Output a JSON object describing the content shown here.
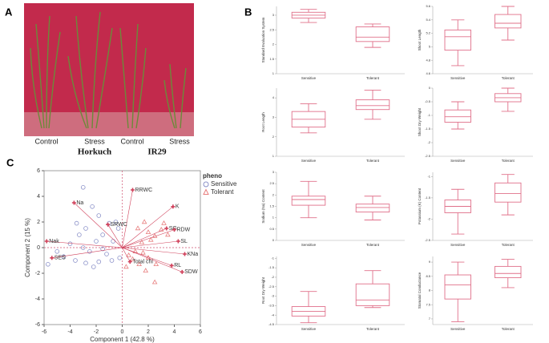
{
  "panel_labels": [
    "A",
    "B",
    "C"
  ],
  "photo": {
    "treatments": [
      "Control",
      "Stress",
      "Control",
      "Stress"
    ],
    "varieties": [
      "Horkuch",
      "IR29"
    ]
  },
  "chart_data": [
    {
      "type": "scatter",
      "xlabel": "Component 1  (42.8 %)",
      "ylabel": "Component 2  (15 %)",
      "xlim": [
        -6,
        6
      ],
      "ylim": [
        -6,
        6
      ],
      "xticks": [
        -6,
        -4,
        -2,
        0,
        2,
        4,
        6
      ],
      "yticks": [
        -6,
        -4,
        -2,
        0,
        2,
        4,
        6
      ],
      "legend_title": "pheno",
      "series": [
        {
          "name": "Sensitive",
          "color": "#8a90c8",
          "x": [
            -3,
            -2.3,
            -1.8,
            -3.5,
            -1,
            -0.5,
            -2.8,
            -0.3,
            -3.3,
            -1.5,
            -2,
            -4,
            -0.7,
            -3,
            -5,
            -4.5,
            -2.5,
            -1.2,
            -3.6,
            -2.8,
            -1.8,
            -0.8,
            -5.7,
            -0.2,
            -1.5,
            -2.2
          ],
          "y": [
            4.7,
            3.2,
            2.5,
            1.9,
            1.9,
            2,
            1.5,
            1.5,
            1,
            1,
            0.5,
            0.3,
            0.5,
            0,
            -0.3,
            -0.7,
            -0.3,
            -0.5,
            -1,
            -1.2,
            -1.1,
            -1,
            -1.3,
            -0.8,
            -0.1,
            -1.5
          ]
        },
        {
          "name": "Tolerant",
          "color": "#e87f7f",
          "x": [
            1.2,
            1.7,
            2,
            2.5,
            3,
            1.5,
            2.2,
            3.5,
            1,
            0.5,
            1.3,
            0.3,
            2,
            2.6,
            1.8,
            2.5,
            0.8,
            3.2,
            1.6
          ],
          "y": [
            1.5,
            2,
            1.2,
            0.9,
            1.4,
            0.4,
            0.6,
            1,
            -0.3,
            -0.6,
            -1.3,
            -1.5,
            -0.8,
            -1.3,
            -1.8,
            -2.7,
            -0.9,
            1.9,
            -0.4
          ]
        }
      ],
      "loadings": {
        "color": "#d0405a",
        "labels": [
          "RRWC",
          "K",
          "Na",
          "SRWC",
          "SG",
          "RDW",
          "SL",
          "Nak",
          "KNa",
          "SES",
          "Total chl",
          "RL",
          "SDW"
        ],
        "x": [
          0.8,
          3.9,
          -3.7,
          -1.1,
          3.4,
          4,
          4.3,
          -5.8,
          4.8,
          -5.4,
          0.6,
          3.8,
          4.6
        ],
        "y": [
          4.5,
          3.2,
          3.5,
          1.8,
          1.5,
          1.4,
          0.5,
          0.5,
          -0.5,
          -0.8,
          -1.1,
          -1.4,
          -1.9
        ]
      }
    },
    {
      "type": "box",
      "ylabel": "Standard Evaluation System",
      "categories": [
        "Sensitive",
        "Tolerant"
      ],
      "color": "#e0708a",
      "ylim": [
        1,
        3.3
      ],
      "yticks": [
        1,
        1.5,
        2,
        2.5,
        3
      ],
      "min": [
        2.75,
        1.9
      ],
      "q1": [
        2.9,
        2.1
      ],
      "median": [
        3.0,
        2.25
      ],
      "q3": [
        3.1,
        2.6
      ],
      "max": [
        3.2,
        2.7
      ]
    },
    {
      "type": "box",
      "ylabel": "Shoot Length",
      "categories": [
        "Sensitive",
        "Tolerant"
      ],
      "color": "#e0708a",
      "ylim": [
        4.6,
        5.6
      ],
      "yticks": [
        4.6,
        4.8,
        5,
        5.2,
        5.4,
        5.6
      ],
      "min": [
        4.72,
        5.1
      ],
      "q1": [
        4.95,
        5.28
      ],
      "median": [
        5.15,
        5.35
      ],
      "q3": [
        5.25,
        5.48
      ],
      "max": [
        5.4,
        5.6
      ]
    },
    {
      "type": "box",
      "ylabel": "Root Length",
      "categories": [
        "Sensitive",
        "Tolerant"
      ],
      "color": "#e0708a",
      "ylim": [
        1,
        4.5
      ],
      "yticks": [
        1,
        2,
        3,
        4
      ],
      "min": [
        2.2,
        2.9
      ],
      "q1": [
        2.5,
        3.4
      ],
      "median": [
        2.9,
        3.6
      ],
      "q3": [
        3.3,
        3.9
      ],
      "max": [
        3.7,
        4.4
      ]
    },
    {
      "type": "box",
      "ylabel": "Shoot Dry Weight",
      "categories": [
        "Sensitive",
        "Tolerant"
      ],
      "color": "#e0708a",
      "ylim": [
        -2.5,
        0
      ],
      "yticks": [
        -2.5,
        -2,
        -1.5,
        -1,
        -0.5,
        0
      ],
      "min": [
        -1.5,
        -0.85
      ],
      "q1": [
        -1.25,
        -0.5
      ],
      "median": [
        -1.05,
        -0.35
      ],
      "q3": [
        -0.8,
        -0.2
      ],
      "max": [
        -0.5,
        0
      ]
    },
    {
      "type": "box",
      "ylabel": "Sodium (Na) Content",
      "categories": [
        "Sensitive",
        "Tolerant"
      ],
      "color": "#e0708a",
      "ylim": [
        0,
        3
      ],
      "yticks": [
        0,
        0.5,
        1,
        1.5,
        2,
        2.5,
        3
      ],
      "min": [
        1.0,
        0.9
      ],
      "q1": [
        1.55,
        1.25
      ],
      "median": [
        1.8,
        1.45
      ],
      "q3": [
        1.95,
        1.6
      ],
      "max": [
        2.6,
        1.95
      ]
    },
    {
      "type": "box",
      "ylabel": "Potassium (K) Content",
      "categories": [
        "Sensitive",
        "Tolerant"
      ],
      "color": "#e0708a",
      "ylim": [
        -2.5,
        -0.9
      ],
      "yticks": [
        -2.5,
        -2,
        -1.5,
        -1
      ],
      "min": [
        -2.35,
        -1.9
      ],
      "q1": [
        -1.85,
        -1.6
      ],
      "median": [
        -1.7,
        -1.4
      ],
      "q3": [
        -1.55,
        -1.15
      ],
      "max": [
        -1.3,
        -0.95
      ]
    },
    {
      "type": "box",
      "ylabel": "Root Dry Weight",
      "categories": [
        "Sensitive",
        "Tolerant"
      ],
      "color": "#e0708a",
      "ylim": [
        -4.5,
        -0.9
      ],
      "yticks": [
        -4.5,
        -4,
        -3.5,
        -3,
        -2.5,
        -2,
        -1.5,
        -1
      ],
      "min": [
        -4.4,
        -3.6
      ],
      "q1": [
        -4.05,
        -3.5
      ],
      "median": [
        -3.8,
        -3.2
      ],
      "q3": [
        -3.55,
        -2.35
      ],
      "max": [
        -2.75,
        -1.65
      ]
    },
    {
      "type": "box",
      "ylabel": "Stomatal Conductance",
      "categories": [
        "Sensitive",
        "Tolerant"
      ],
      "color": "#e0708a",
      "ylim": [
        6.8,
        9.2
      ],
      "yticks": [
        7,
        7.5,
        8,
        8.5,
        9
      ],
      "min": [
        6.9,
        8.1
      ],
      "q1": [
        7.7,
        8.45
      ],
      "median": [
        8.2,
        8.6
      ],
      "q3": [
        8.55,
        8.85
      ],
      "max": [
        9.0,
        9.1
      ]
    }
  ]
}
